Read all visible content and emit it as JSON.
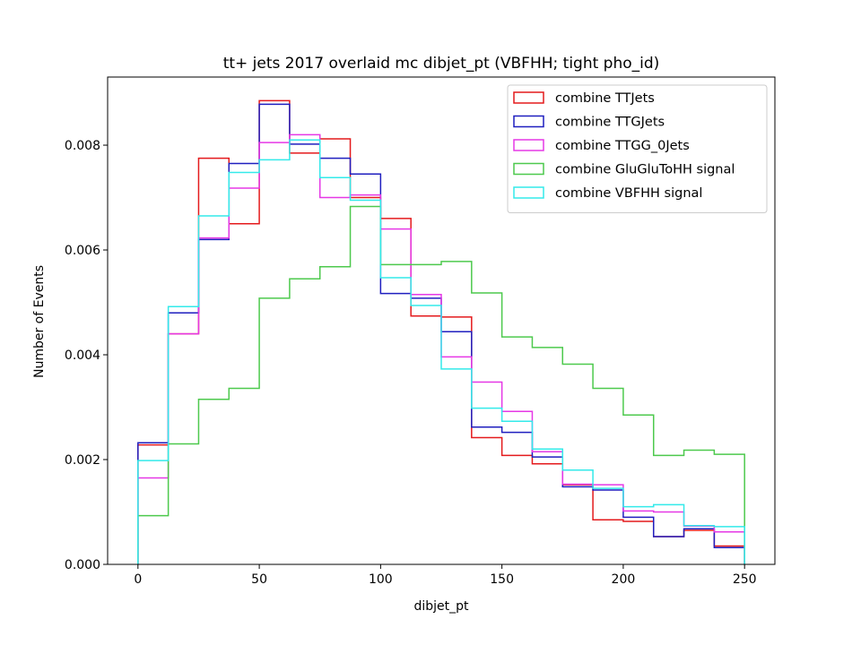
{
  "chart_data": {
    "type": "histogram",
    "title": "tt+ jets 2017 overlaid mc dibjet_pt (VBFHH; tight pho_id)",
    "xlabel": "dibjet_pt",
    "ylabel": "Number of Events",
    "xlim": [
      -12.5,
      262.5
    ],
    "ylim": [
      0,
      0.0093
    ],
    "bin_edges": [
      0,
      12.5,
      25,
      37.5,
      50,
      62.5,
      75,
      87.5,
      100,
      112.5,
      125,
      137.5,
      150,
      162.5,
      175,
      187.5,
      200,
      212.5,
      225,
      237.5,
      250
    ],
    "x_ticks": [
      0,
      50,
      100,
      150,
      200,
      250
    ],
    "x_tick_labels": [
      "0",
      "50",
      "100",
      "150",
      "200",
      "250"
    ],
    "y_ticks": [
      0,
      0.002,
      0.004,
      0.006,
      0.008
    ],
    "y_tick_labels": [
      "0.000",
      "0.002",
      "0.004",
      "0.006",
      "0.008"
    ],
    "grid": false,
    "legend_position": "top-right",
    "series": [
      {
        "name": "combine TTJets",
        "color": "#e41a1c",
        "values": [
          0.00228,
          0.0044,
          0.00775,
          0.0065,
          0.00885,
          0.00785,
          0.00812,
          0.007,
          0.0066,
          0.00474,
          0.00472,
          0.00242,
          0.00208,
          0.00192,
          0.00152,
          0.00085,
          0.00082,
          0.00053,
          0.00065,
          0.00035
        ]
      },
      {
        "name": "combine TTGJets",
        "color": "#1f1fbf",
        "values": [
          0.00232,
          0.0048,
          0.0062,
          0.00765,
          0.00878,
          0.00802,
          0.00775,
          0.00745,
          0.00517,
          0.00508,
          0.00444,
          0.00262,
          0.00252,
          0.00205,
          0.00148,
          0.00142,
          0.0009,
          0.00053,
          0.00068,
          0.00032
        ]
      },
      {
        "name": "combine TTGG_0Jets",
        "color": "#e638e6",
        "values": [
          0.00165,
          0.0044,
          0.00623,
          0.00718,
          0.00805,
          0.0082,
          0.007,
          0.00705,
          0.0064,
          0.00515,
          0.00396,
          0.00348,
          0.00292,
          0.00215,
          0.00153,
          0.00152,
          0.00102,
          0.001,
          0.00073,
          0.00062
        ]
      },
      {
        "name": "combine GluGluToHH signal",
        "color": "#4dc94d",
        "values": [
          0.00093,
          0.0023,
          0.00315,
          0.00336,
          0.00508,
          0.00545,
          0.00568,
          0.00683,
          0.00572,
          0.00572,
          0.00578,
          0.00518,
          0.00434,
          0.00414,
          0.00382,
          0.00336,
          0.00285,
          0.00208,
          0.00218,
          0.0021
        ]
      },
      {
        "name": "combine VBFHH signal",
        "color": "#33eaea",
        "values": [
          0.00198,
          0.00492,
          0.00665,
          0.00748,
          0.00772,
          0.0081,
          0.00738,
          0.00695,
          0.00547,
          0.00494,
          0.00373,
          0.00298,
          0.00273,
          0.0022,
          0.0018,
          0.00145,
          0.0011,
          0.00114,
          0.00074,
          0.00072
        ]
      }
    ]
  }
}
